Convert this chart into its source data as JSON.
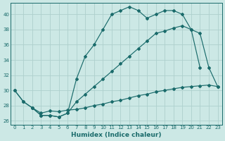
{
  "title": "",
  "xlabel": "Humidex (Indice chaleur)",
  "ylabel": "",
  "xlim": [
    -0.5,
    23.5
  ],
  "ylim": [
    25.5,
    41.5
  ],
  "yticks": [
    26,
    28,
    30,
    32,
    34,
    36,
    38,
    40
  ],
  "xticks": [
    0,
    1,
    2,
    3,
    4,
    5,
    6,
    7,
    8,
    9,
    10,
    11,
    12,
    13,
    14,
    15,
    16,
    17,
    18,
    19,
    20,
    21,
    22,
    23
  ],
  "bg_color": "#cce8e5",
  "line_color": "#1a6b6b",
  "grid_color": "#aed0cd",
  "line1_x": [
    0,
    1,
    2,
    3,
    4,
    5,
    6,
    7,
    8,
    9,
    10,
    11,
    12,
    13,
    14,
    15,
    16,
    17,
    18,
    19,
    20,
    21,
    22,
    23
  ],
  "line1_y": [
    30.0,
    28.5,
    27.7,
    27.0,
    27.3,
    27.2,
    27.4,
    27.5,
    27.7,
    28.0,
    28.2,
    28.5,
    28.7,
    29.0,
    29.3,
    29.5,
    29.8,
    30.0,
    30.2,
    30.4,
    30.5,
    30.6,
    30.7,
    30.5
  ],
  "line2_x": [
    0,
    1,
    2,
    3,
    4,
    5,
    6,
    7,
    8,
    9,
    10,
    11,
    12,
    13,
    14,
    15,
    16,
    17,
    18,
    19,
    20,
    21
  ],
  "line2_y": [
    30.0,
    28.5,
    27.7,
    26.7,
    26.7,
    26.5,
    27.0,
    31.5,
    34.5,
    36.0,
    38.0,
    40.0,
    40.5,
    41.0,
    40.5,
    39.5,
    40.0,
    40.5,
    40.5,
    40.0,
    38.0,
    33.0
  ],
  "line3_x": [
    2,
    3,
    4,
    5,
    6,
    7,
    8,
    9,
    10,
    11,
    12,
    13,
    14,
    15,
    16,
    17,
    18,
    19,
    20,
    21,
    22,
    23
  ],
  "line3_y": [
    27.7,
    26.7,
    26.7,
    26.5,
    27.0,
    28.5,
    29.5,
    30.5,
    31.5,
    32.5,
    33.5,
    34.5,
    35.5,
    36.5,
    37.5,
    37.8,
    38.2,
    38.5,
    38.0,
    37.5,
    33.0,
    30.5
  ]
}
